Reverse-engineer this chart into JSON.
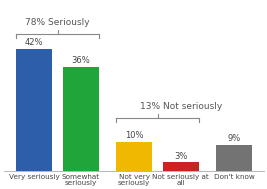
{
  "categories": [
    "Very seriously",
    "Somewhat\nseriously",
    "Not very\nseriously",
    "Not seriously at\nall",
    "Don't know"
  ],
  "values": [
    42,
    36,
    10,
    3,
    9
  ],
  "bar_colors": [
    "#2b5faa",
    "#1fa538",
    "#f0b800",
    "#cc2222",
    "#737373"
  ],
  "bar_labels": [
    "42%",
    "36%",
    "10%",
    "3%",
    "9%"
  ],
  "bracket1_label": "78% Seriously",
  "bracket2_label": "13% Not seriously",
  "ylim": [
    0,
    58
  ],
  "background_color": "#ffffff",
  "label_fontsize": 6.0,
  "tick_fontsize": 5.2,
  "bracket_fontsize": 6.5,
  "bar_width": 0.78,
  "bar_spacing": 0.18
}
